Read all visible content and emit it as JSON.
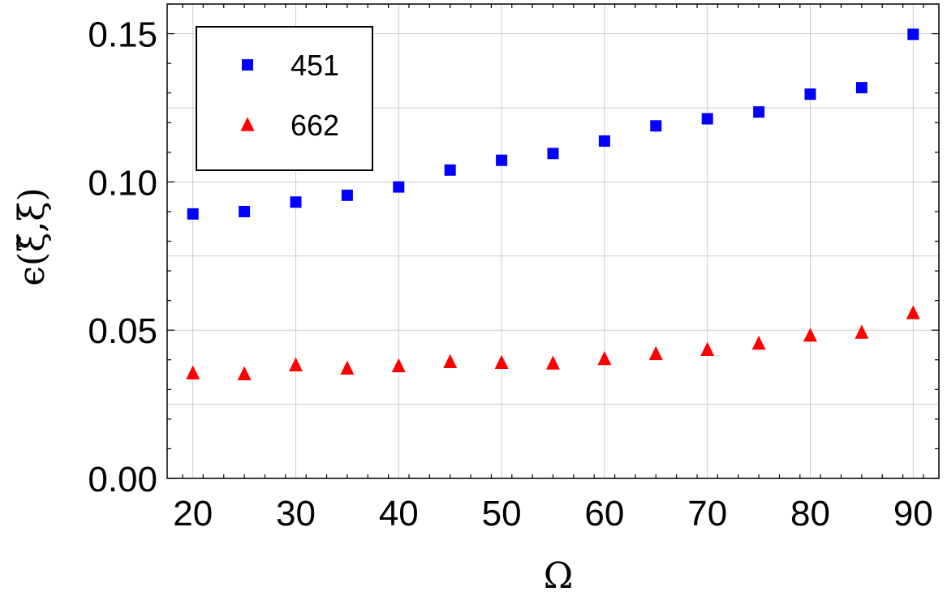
{
  "chart_data": {
    "type": "scatter",
    "xlabel": "Ω",
    "ylabel": "ϵ(ξ̃,ξ)",
    "xlim": [
      17.5,
      92.5
    ],
    "ylim": [
      0,
      0.16
    ],
    "x_ticks": [
      20,
      30,
      40,
      50,
      60,
      70,
      80,
      90
    ],
    "x_tick_labels": [
      "20",
      "30",
      "40",
      "50",
      "60",
      "70",
      "80",
      "90"
    ],
    "y_ticks": [
      0,
      0.05,
      0.1,
      0.15
    ],
    "y_tick_labels": [
      "0.00",
      "0.05",
      "0.10",
      "0.15"
    ],
    "grid": true,
    "legend_position": "top-left",
    "series": [
      {
        "name": "451",
        "marker": "square",
        "color": "#0000ff",
        "x": [
          20,
          25,
          30,
          35,
          40,
          45,
          50,
          55,
          60,
          65,
          70,
          75,
          80,
          85,
          90
        ],
        "y": [
          0.0892,
          0.09,
          0.0932,
          0.0955,
          0.0983,
          0.104,
          0.1073,
          0.1096,
          0.1138,
          0.1189,
          0.1213,
          0.1236,
          0.1296,
          0.1318,
          0.1498
        ]
      },
      {
        "name": "662",
        "marker": "triangle",
        "color": "#ff0000",
        "x": [
          20,
          25,
          30,
          35,
          40,
          45,
          50,
          55,
          60,
          65,
          70,
          75,
          80,
          85,
          90
        ],
        "y": [
          0.0355,
          0.0352,
          0.0382,
          0.0371,
          0.0379,
          0.0393,
          0.039,
          0.0388,
          0.0403,
          0.042,
          0.0434,
          0.0455,
          0.0482,
          0.0492,
          0.0558
        ]
      }
    ]
  }
}
